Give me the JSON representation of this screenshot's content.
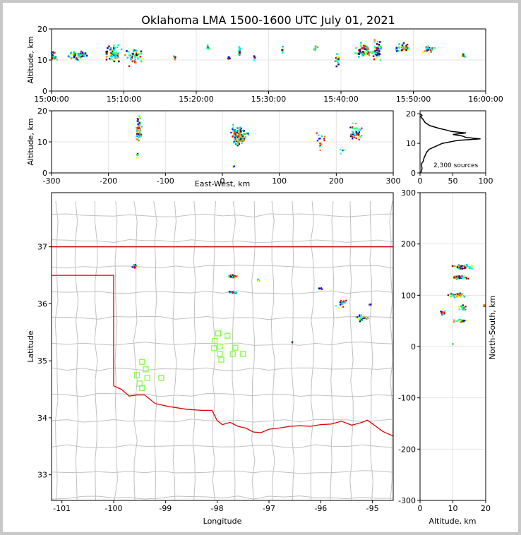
{
  "chart_data": [
    {
      "id": "time-height",
      "type": "scatter",
      "title": "Oklahoma LMA 1500-1600 UTC July 01, 2021",
      "xlabel": "",
      "ylabel": "Altitude, km",
      "x_ticks": [
        "15:00:00",
        "15:10:00",
        "15:20:00",
        "15:30:00",
        "15:40:00",
        "15:50:00",
        "16:00:00"
      ],
      "xlim_minutes": [
        0,
        60
      ],
      "ylim": [
        0,
        20
      ],
      "y_ticks": [
        0,
        10,
        20
      ],
      "grid": true,
      "clusters_minutes_altitude": [
        {
          "x": 0.3,
          "y": 11,
          "spread_x": 0.6,
          "spread_y": 3,
          "n": 18
        },
        {
          "x": 3.5,
          "y": 11.5,
          "spread_x": 1.6,
          "spread_y": 2,
          "n": 45
        },
        {
          "x": 8.5,
          "y": 12,
          "spread_x": 1.6,
          "spread_y": 3.5,
          "n": 55
        },
        {
          "x": 11.5,
          "y": 11,
          "spread_x": 1.6,
          "spread_y": 3.5,
          "n": 45
        },
        {
          "x": 17,
          "y": 11,
          "spread_x": 0.3,
          "spread_y": 1.5,
          "n": 6
        },
        {
          "x": 21.5,
          "y": 14,
          "spread_x": 0.4,
          "spread_y": 1.5,
          "n": 6
        },
        {
          "x": 24.5,
          "y": 10.5,
          "spread_x": 0.3,
          "spread_y": 1,
          "n": 6
        },
        {
          "x": 26,
          "y": 13,
          "spread_x": 0.3,
          "spread_y": 2,
          "n": 14
        },
        {
          "x": 28,
          "y": 10.5,
          "spread_x": 0.2,
          "spread_y": 1,
          "n": 4
        },
        {
          "x": 32,
          "y": 13,
          "spread_x": 0.2,
          "spread_y": 1.5,
          "n": 6
        },
        {
          "x": 36.5,
          "y": 13.5,
          "spread_x": 0.4,
          "spread_y": 1.5,
          "n": 8
        },
        {
          "x": 39.5,
          "y": 10,
          "spread_x": 0.4,
          "spread_y": 4,
          "n": 18
        },
        {
          "x": 43,
          "y": 13,
          "spread_x": 1.5,
          "spread_y": 3,
          "n": 55
        },
        {
          "x": 45,
          "y": 13,
          "spread_x": 0.8,
          "spread_y": 4.5,
          "n": 55
        },
        {
          "x": 48.5,
          "y": 14,
          "spread_x": 1.8,
          "spread_y": 1.8,
          "n": 35
        },
        {
          "x": 52,
          "y": 13.5,
          "spread_x": 1.5,
          "spread_y": 1.8,
          "n": 25
        },
        {
          "x": 57,
          "y": 11.5,
          "spread_x": 0.4,
          "spread_y": 1.5,
          "n": 8
        }
      ]
    },
    {
      "id": "east-west-altitude",
      "type": "scatter",
      "xlabel": "East-West, km",
      "ylabel": "Altitude, km",
      "xlim": [
        -300,
        300
      ],
      "x_ticks": [
        -300,
        -200,
        -100,
        0,
        100,
        200,
        300
      ],
      "ylim": [
        0,
        20
      ],
      "y_ticks": [
        0,
        10,
        20
      ],
      "grid": true,
      "clusters": [
        {
          "x": -147,
          "y": 14,
          "spread_x": 6,
          "spread_y": 5,
          "n": 90
        },
        {
          "x": -150,
          "y": 6,
          "spread_x": 3,
          "spread_y": 1.5,
          "n": 6
        },
        {
          "x": 28,
          "y": 12,
          "spread_x": 20,
          "spread_y": 4,
          "n": 150
        },
        {
          "x": 20,
          "y": 2,
          "spread_x": 2,
          "spread_y": 0.5,
          "n": 3
        },
        {
          "x": 175,
          "y": 10,
          "spread_x": 15,
          "spread_y": 4,
          "n": 15
        },
        {
          "x": 235,
          "y": 13,
          "spread_x": 15,
          "spread_y": 4,
          "n": 45
        },
        {
          "x": 210,
          "y": 7,
          "spread_x": 10,
          "spread_y": 1.5,
          "n": 6
        }
      ]
    },
    {
      "id": "altitude-histogram",
      "type": "line",
      "annotation": "2,300 sources",
      "xlim": [
        0,
        100
      ],
      "x_ticks": [
        0,
        50,
        100
      ],
      "ylim": [
        0,
        21
      ],
      "y_ticks": [
        0,
        10,
        20
      ],
      "profile_count_vs_altitude": [
        [
          0,
          0
        ],
        [
          2,
          0.5
        ],
        [
          3,
          1.5
        ],
        [
          2,
          3
        ],
        [
          5,
          4
        ],
        [
          6,
          5
        ],
        [
          8,
          6
        ],
        [
          10,
          7
        ],
        [
          14,
          8
        ],
        [
          24,
          9
        ],
        [
          34,
          10
        ],
        [
          58,
          11
        ],
        [
          92,
          11.5
        ],
        [
          70,
          12
        ],
        [
          64,
          12.5
        ],
        [
          50,
          13
        ],
        [
          70,
          13.5
        ],
        [
          48,
          14
        ],
        [
          40,
          14.5
        ],
        [
          30,
          15
        ],
        [
          15,
          16
        ],
        [
          8,
          17
        ],
        [
          5,
          18
        ],
        [
          1,
          19
        ],
        [
          3,
          19.5
        ],
        [
          0,
          20
        ]
      ]
    },
    {
      "id": "plan-view-map",
      "type": "scatter",
      "xlabel": "Longitude",
      "ylabel": "Latitude",
      "xlim": [
        -101.2,
        -94.6
      ],
      "x_ticks": [
        -101,
        -100,
        -99,
        -98,
        -97,
        -96,
        -95
      ],
      "ylim": [
        32.55,
        37.95
      ],
      "y_ticks": [
        33,
        34,
        35,
        36,
        37
      ],
      "state_border_color": "#e00000",
      "county_line_color": "#c0c0c0",
      "station_color": "#80ff40",
      "stations": [
        [
          -99.45,
          34.98
        ],
        [
          -99.55,
          34.75
        ],
        [
          -99.38,
          34.85
        ],
        [
          -99.5,
          34.6
        ],
        [
          -99.35,
          34.7
        ],
        [
          -99.45,
          34.52
        ],
        [
          -99.08,
          34.7
        ],
        [
          -97.98,
          35.48
        ],
        [
          -98.05,
          35.35
        ],
        [
          -97.95,
          35.25
        ],
        [
          -98.06,
          35.22
        ],
        [
          -97.8,
          35.44
        ],
        [
          -97.65,
          35.23
        ],
        [
          -97.95,
          35.12
        ],
        [
          -97.7,
          35.12
        ],
        [
          -97.5,
          35.12
        ],
        [
          -97.92,
          35.02
        ]
      ],
      "clusters": [
        {
          "x": -99.6,
          "y": 36.66,
          "spread_x": 0.06,
          "spread_y": 0.04,
          "n": 35
        },
        {
          "x": -97.7,
          "y": 36.48,
          "spread_x": 0.15,
          "spread_y": 0.04,
          "n": 40
        },
        {
          "x": -97.7,
          "y": 36.2,
          "spread_x": 0.12,
          "spread_y": 0.03,
          "n": 18
        },
        {
          "x": -97.2,
          "y": 36.42,
          "spread_x": 0.05,
          "spread_y": 0.05,
          "n": 5
        },
        {
          "x": -96.0,
          "y": 36.27,
          "spread_x": 0.08,
          "spread_y": 0.03,
          "n": 8
        },
        {
          "x": -95.6,
          "y": 36.0,
          "spread_x": 0.15,
          "spread_y": 0.1,
          "n": 20
        },
        {
          "x": -95.2,
          "y": 35.75,
          "spread_x": 0.15,
          "spread_y": 0.08,
          "n": 25
        },
        {
          "x": -95.05,
          "y": 35.98,
          "spread_x": 0.05,
          "spread_y": 0.05,
          "n": 5
        },
        {
          "x": -96.55,
          "y": 35.33,
          "spread_x": 0.02,
          "spread_y": 0.02,
          "n": 3
        }
      ]
    },
    {
      "id": "altitude-north-south",
      "type": "scatter",
      "xlabel": "Altitude, km",
      "ylabel": "North-South, km",
      "xlim": [
        0,
        20
      ],
      "x_ticks": [
        0,
        10,
        20
      ],
      "ylim": [
        -300,
        300
      ],
      "y_ticks": [
        -300,
        -200,
        -100,
        0,
        100,
        200,
        300
      ],
      "grid": true,
      "clusters": [
        {
          "x": 13,
          "y": 155,
          "spread_x": 4,
          "spread_y": 6,
          "n": 70
        },
        {
          "x": 12,
          "y": 135,
          "spread_x": 3,
          "spread_y": 5,
          "n": 50
        },
        {
          "x": 11,
          "y": 100,
          "spread_x": 3.5,
          "spread_y": 6,
          "n": 50
        },
        {
          "x": 7,
          "y": 70,
          "spread_x": 1.5,
          "spread_y": 15,
          "n": 15
        },
        {
          "x": 13,
          "y": 75,
          "spread_x": 2,
          "spread_y": 10,
          "n": 15
        },
        {
          "x": 13,
          "y": 50,
          "spread_x": 3,
          "spread_y": 4,
          "n": 25
        },
        {
          "x": 19.5,
          "y": 80,
          "spread_x": 0.3,
          "spread_y": 3,
          "n": 4
        },
        {
          "x": 10,
          "y": 5,
          "spread_x": 0.3,
          "spread_y": 1,
          "n": 2
        }
      ]
    }
  ]
}
